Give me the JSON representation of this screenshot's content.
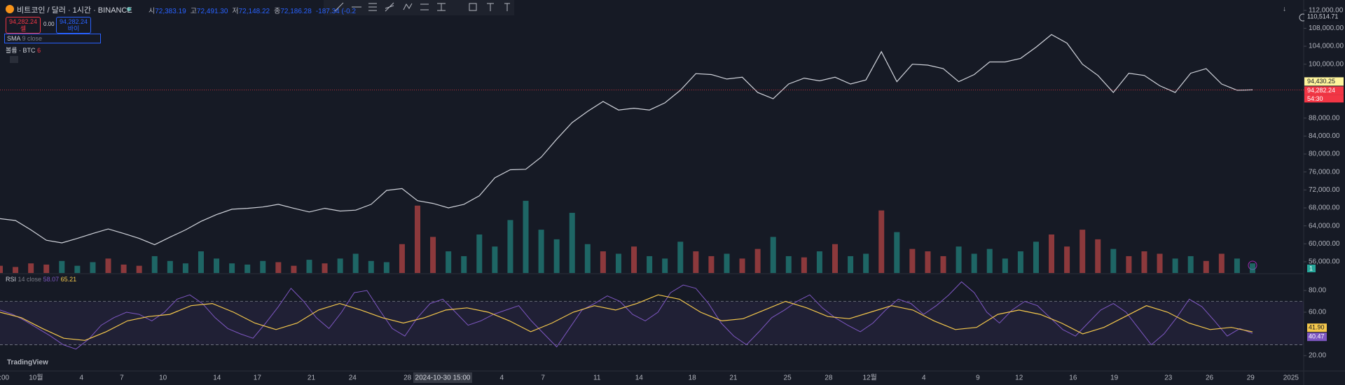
{
  "header": {
    "symbol": "비트코인 / 달러 · 1시간 · BINANCE",
    "ohlc": [
      {
        "key": "시",
        "value": "72,383.19"
      },
      {
        "key": "고",
        "value": "72,491.30"
      },
      {
        "key": "저",
        "value": "72,148.22"
      },
      {
        "key": "종",
        "value": "72,186.28"
      }
    ],
    "change": "-187.34 (-0.2"
  },
  "trade": {
    "sell_price": "94,282.24",
    "sell_label": "셀",
    "spread": "0.00",
    "buy_price": "94,282.24",
    "buy_label": "바이"
  },
  "indicators": {
    "sma": "SMA",
    "sma_params": "9 close",
    "volume": "볼륨 · BTC",
    "volume_value": "6",
    "rsi": "RSI",
    "rsi_params": "14 close",
    "rsi_value": "58.07",
    "rsi_ma_value": "65.21"
  },
  "brand": "TradingView",
  "chart_data": [
    {
      "type": "line",
      "color": "#d1d4dc",
      "ylim": [
        53500,
        114300
      ],
      "yticks": [
        {
          "value": 112000,
          "label": "112,000.00"
        },
        {
          "value": 108000,
          "label": "108,000.00"
        },
        {
          "value": 104000,
          "label": "104,000.00"
        },
        {
          "value": 100000,
          "label": "100,000.00"
        },
        {
          "value": 88000,
          "label": "88,000.00"
        },
        {
          "value": 84000,
          "label": "84,000.00"
        },
        {
          "value": 80000,
          "label": "80,000.00"
        },
        {
          "value": 76000,
          "label": "76,000.00"
        },
        {
          "value": 72000,
          "label": "72,000.00"
        },
        {
          "value": 68000,
          "label": "68,000.00"
        },
        {
          "value": 64000,
          "label": "64,000.00"
        },
        {
          "value": 60000,
          "label": "60,000.00"
        },
        {
          "value": 56000,
          "label": "56,000.00"
        }
      ],
      "values": [
        65600,
        65200,
        63100,
        60800,
        60200,
        61200,
        62300,
        63300,
        62300,
        61200,
        59800,
        61500,
        63100,
        65000,
        66500,
        67700,
        67900,
        68200,
        68800,
        67900,
        67100,
        67900,
        67300,
        67500,
        68800,
        71900,
        72300,
        69600,
        69000,
        68000,
        68800,
        70700,
        74700,
        76500,
        76600,
        79300,
        83300,
        87000,
        89500,
        91700,
        89800,
        90200,
        89800,
        91400,
        94200,
        97900,
        97700,
        96700,
        97100,
        93700,
        92300,
        95600,
        96900,
        96300,
        97100,
        95600,
        96500,
        102800,
        96100,
        100000,
        99800,
        99000,
        96100,
        97700,
        100500,
        100500,
        101300,
        103800,
        106600,
        104700,
        100000,
        97500,
        93700,
        98000,
        97500,
        95200,
        93700,
        98000,
        99000,
        95600,
        94200,
        94282.24
      ],
      "price_labels": [
        {
          "value": 110514.71,
          "label": "110,514.71"
        },
        {
          "value": 94430.25,
          "label": "94,430.25"
        },
        {
          "value": 94282.24,
          "label": "94,282.24"
        }
      ],
      "countdown": "54:30"
    },
    {
      "type": "bar",
      "color_up": "#26a69a",
      "color_down": "#ef5350",
      "badge": "1",
      "values": [
        300,
        250,
        400,
        350,
        500,
        300,
        450,
        600,
        350,
        300,
        700,
        500,
        400,
        900,
        600,
        400,
        350,
        500,
        450,
        300,
        550,
        400,
        600,
        800,
        500,
        450,
        1200,
        2800,
        1500,
        900,
        700,
        1600,
        1100,
        2200,
        3000,
        1800,
        1400,
        2500,
        1200,
        900,
        800,
        1100,
        700,
        600,
        1300,
        900,
        700,
        800,
        600,
        1000,
        1500,
        700,
        650,
        900,
        1200,
        700,
        800,
        2600,
        1700,
        1000,
        900,
        700,
        1100,
        800,
        1000,
        600,
        900,
        1300,
        1600,
        1100,
        1800,
        1400,
        1000,
        700,
        900,
        800,
        600,
        700,
        500,
        800,
        600,
        400
      ]
    },
    {
      "type": "line",
      "ylim": [
        6.5,
        94.8
      ],
      "bands": [
        30,
        70
      ],
      "yticks": [
        {
          "value": 80,
          "label": "80.00"
        },
        {
          "value": 60,
          "label": "60.00"
        },
        {
          "value": 20,
          "label": "20.00"
        }
      ],
      "series": [
        {
          "color": "#7e57c2",
          "values": [
            62,
            58,
            52,
            45,
            38,
            30,
            26,
            35,
            48,
            55,
            60,
            58,
            52,
            60,
            72,
            76,
            68,
            55,
            45,
            40,
            36,
            50,
            65,
            82,
            70,
            55,
            45,
            60,
            78,
            80,
            62,
            45,
            38,
            55,
            68,
            72,
            60,
            48,
            52,
            58,
            62,
            66,
            52,
            40,
            28,
            45,
            62,
            68,
            75,
            70,
            58,
            52,
            60,
            78,
            85,
            82,
            68,
            50,
            38,
            30,
            42,
            55,
            62,
            70,
            76,
            64,
            55,
            48,
            42,
            50,
            62,
            72,
            68,
            58,
            66,
            76,
            88,
            78,
            60,
            50,
            62,
            70,
            66,
            55,
            44,
            38,
            50,
            62,
            68,
            60,
            45,
            30,
            40,
            55,
            72,
            65,
            52,
            38,
            45,
            40.47
          ]
        },
        {
          "color": "#f5c84c",
          "values": [
            60,
            55,
            45,
            36,
            34,
            42,
            52,
            56,
            58,
            66,
            68,
            60,
            50,
            44,
            50,
            62,
            68,
            62,
            55,
            50,
            55,
            62,
            64,
            60,
            52,
            42,
            50,
            60,
            66,
            62,
            68,
            76,
            72,
            60,
            52,
            54,
            62,
            70,
            64,
            56,
            54,
            60,
            66,
            62,
            52,
            44,
            46,
            58,
            62,
            58,
            50,
            40,
            46,
            56,
            66,
            60,
            50,
            44,
            46,
            41.9
          ]
        }
      ],
      "last_labels": [
        {
          "value": 41.9,
          "label": "41.90"
        },
        {
          "value": 40.47,
          "label": "40.47"
        }
      ]
    }
  ],
  "x_axis": {
    "labels": [
      ":00",
      "10월",
      "4",
      "7",
      "10",
      "14",
      "17",
      "21",
      "24",
      "28",
      "4",
      "7",
      "11",
      "14",
      "18",
      "21",
      "25",
      "28",
      "12월",
      "4",
      "9",
      "12",
      "16",
      "19",
      "23",
      "26",
      "29",
      "2025"
    ],
    "cursor_label": "2024-10-30  15:00"
  }
}
